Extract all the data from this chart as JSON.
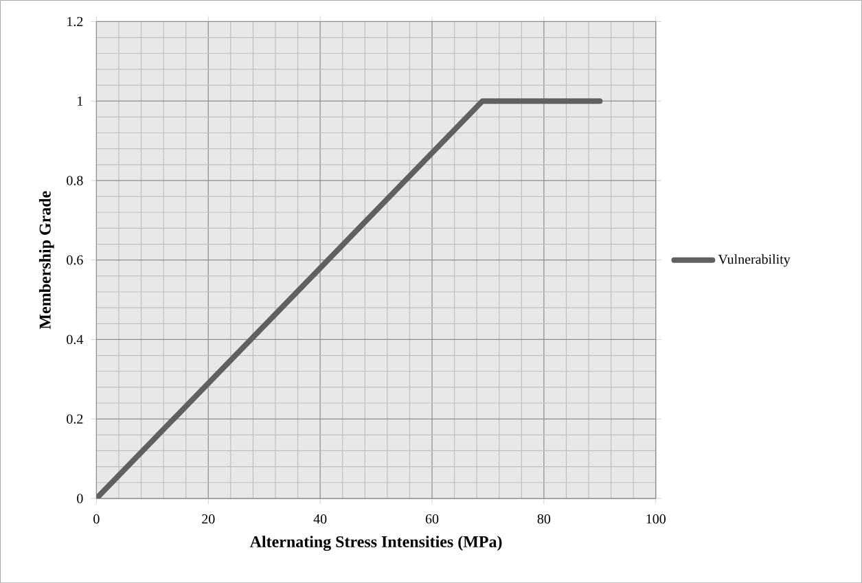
{
  "chart_data": {
    "type": "line",
    "xlabel": "Alternating Stress Intensities (MPa)",
    "ylabel": "Membership Grade",
    "x": [
      0,
      69,
      90
    ],
    "series": [
      {
        "name": "Vulnerability",
        "color": "#606060",
        "values": [
          0,
          1,
          1
        ]
      }
    ],
    "xlim": [
      0,
      100
    ],
    "xticks": [
      0,
      20,
      40,
      60,
      80,
      100
    ],
    "ylim": [
      0,
      1.2
    ],
    "yticks": [
      0,
      0.2,
      0.4,
      0.6,
      0.8,
      1,
      1.2
    ],
    "grid": true,
    "legend": "right",
    "marker": "none",
    "line_style": "solid"
  }
}
